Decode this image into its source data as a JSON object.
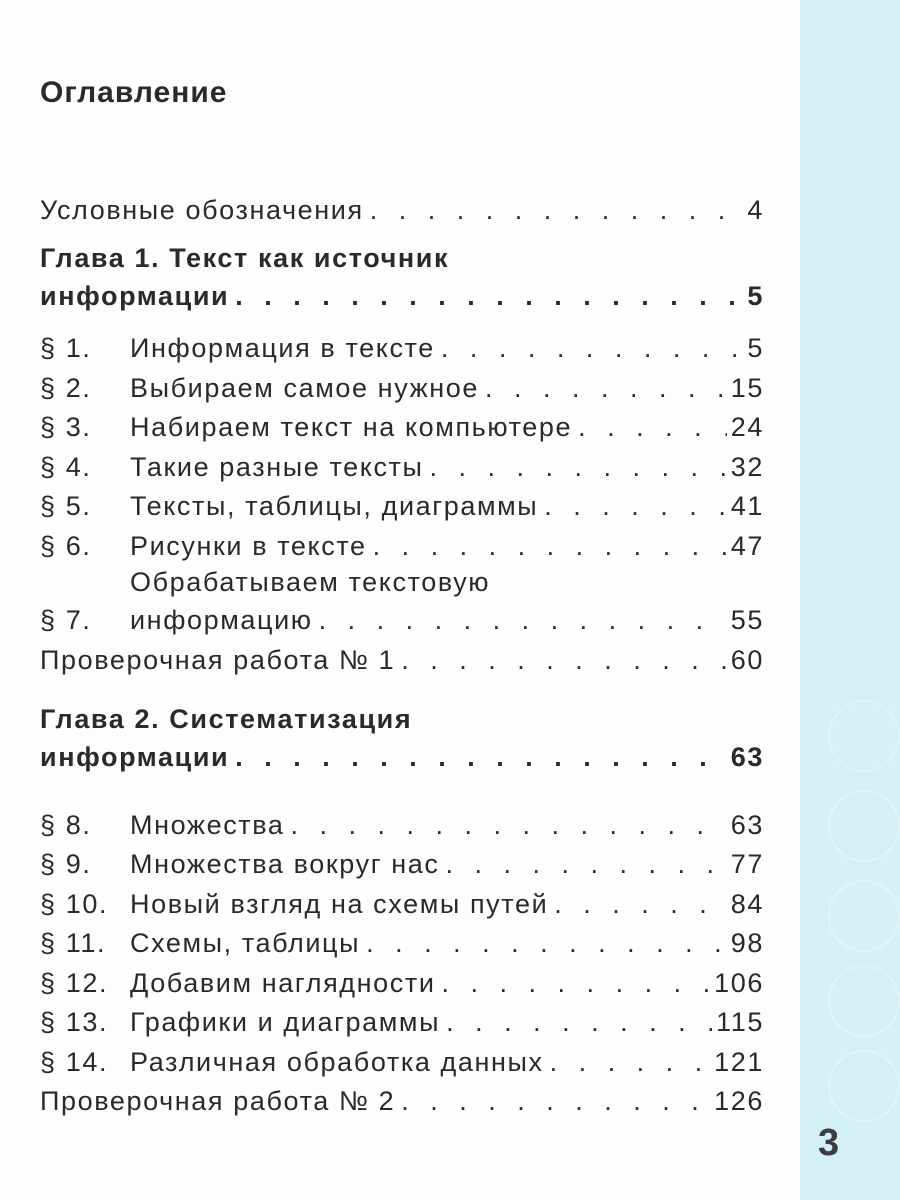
{
  "title": "Оглавление",
  "page_number": "3",
  "colors": {
    "strip": "#d3f1f5",
    "text": "#2a2a2e"
  },
  "entries": [
    {
      "num": "",
      "text": "Условные обозначения",
      "page": "4"
    },
    {
      "num": "",
      "text": "Глава 1. Текст как источник",
      "text2": "информации",
      "page": "5",
      "bold": true
    },
    {
      "num": "§ 1.",
      "text": "Информация в тексте",
      "page": "5"
    },
    {
      "num": "§ 2.",
      "text": "Выбираем самое нужное",
      "page": "15"
    },
    {
      "num": "§ 3.",
      "text": "Набираем текст на компьютере",
      "page": "24"
    },
    {
      "num": "§ 4.",
      "text": "Такие разные тексты",
      "page": "32"
    },
    {
      "num": "§ 5.",
      "text": "Тексты, таблицы, диаграммы",
      "page": "41"
    },
    {
      "num": "§ 6.",
      "text": "Рисунки в тексте",
      "page": "47"
    },
    {
      "num": "§ 7.",
      "text": "Обрабатываем текстовую",
      "text2": "информацию",
      "page": "55"
    },
    {
      "num": "",
      "text": "Проверочная работа № 1",
      "page": "60"
    },
    {
      "num": "",
      "text": "Глава 2. Систематизация",
      "text2": "информации",
      "page": "63",
      "bold": true
    },
    {
      "num": "§ 8.",
      "text": "Множества",
      "page": "63"
    },
    {
      "num": "§ 9.",
      "text": "Множества вокруг нас",
      "page": "77"
    },
    {
      "num": "§ 10.",
      "text": "Новый взгляд на схемы путей",
      "page": "84"
    },
    {
      "num": "§ 11.",
      "text": "Схемы, таблицы",
      "page": "98"
    },
    {
      "num": "§ 12.",
      "text": "Добавим наглядности",
      "page": "106"
    },
    {
      "num": "§ 13.",
      "text": "Графики и диаграммы",
      "page": "115"
    },
    {
      "num": "§ 14.",
      "text": "Различная обработка данных",
      "page": "121"
    },
    {
      "num": "",
      "text": "Проверочная работа № 2",
      "page": "126"
    }
  ]
}
